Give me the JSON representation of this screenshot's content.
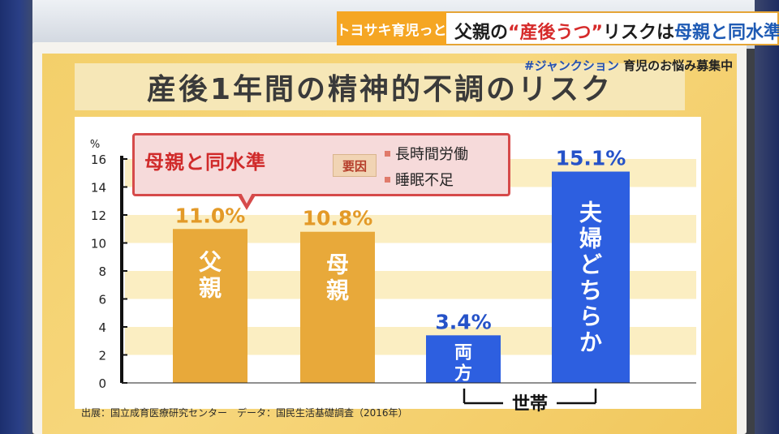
{
  "broadcast": {
    "program": "トヨサキ育児っと",
    "headline_pre": "父親の",
    "headline_red": "“産後うつ”",
    "headline_mid": "リスクは",
    "headline_blue": "母親と同水準",
    "tag_hash": "#ジャンクション",
    "tag_text": "育児のお悩み募集中"
  },
  "board": {
    "title": "産後1年間の精神的不調のリスク",
    "source": "出展：国立成育医療研究センター　データ：国民生活基礎調査（2016年）"
  },
  "callout": {
    "headline": "母親と同水準",
    "cause_label": "要因",
    "causes": [
      "長時間労働",
      "睡眠不足"
    ]
  },
  "colors": {
    "mother_father_bar": "#e8a93a",
    "household_bar": "#2d5fe0",
    "value_text_orange": "#e39a28",
    "value_text_blue": "#2552c8",
    "callout_red": "#d64a4a"
  },
  "chart_data": {
    "type": "bar",
    "categories": [
      "父親",
      "母親",
      "両方",
      "夫婦どちらか"
    ],
    "values": [
      11.0,
      10.8,
      3.4,
      15.1
    ],
    "value_labels": [
      "11.0%",
      "10.8%",
      "3.4%",
      "15.1%"
    ],
    "groups": [
      "parent",
      "parent",
      "household",
      "household"
    ],
    "group_label": "世帯",
    "yunit": "%",
    "ylim": [
      0,
      16
    ],
    "yticks": [
      0,
      2,
      4,
      6,
      8,
      10,
      12,
      14,
      16
    ],
    "grid": "horizontal bands",
    "title": "産後1年間の精神的不調のリスク"
  }
}
